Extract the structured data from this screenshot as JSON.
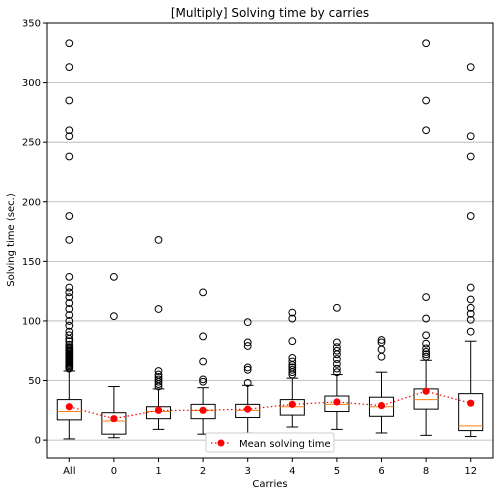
{
  "chart_data": {
    "type": "box",
    "title": "[Multiply] Solving time by carries",
    "xlabel": "Carries",
    "ylabel": "Solving time (sec.)",
    "ylim": [
      -15,
      350
    ],
    "yticks": [
      0,
      50,
      100,
      150,
      200,
      250,
      300,
      350
    ],
    "grid": "horizontal",
    "legend": {
      "position": "bottom-center",
      "entries": [
        "Mean solving time"
      ]
    },
    "colors": {
      "box": "#000000",
      "median": "#ff7f0e",
      "mean": "#ff0000",
      "grid": "#b0b0b0"
    },
    "categories": [
      "All",
      "0",
      "1",
      "2",
      "3",
      "4",
      "5",
      "6",
      "8",
      "12"
    ],
    "boxes": [
      {
        "category": "All",
        "whisker_low": 1,
        "q1": 17,
        "median": 24,
        "q3": 34,
        "whisker_high": 58,
        "outliers": [
          60,
          61,
          62,
          63,
          64,
          65,
          66,
          67,
          68,
          69,
          70,
          71,
          72,
          73,
          74,
          75,
          76,
          77,
          78,
          80,
          83,
          85,
          88,
          91,
          96,
          100,
          105,
          110,
          115,
          120,
          124,
          128,
          137,
          168,
          188,
          238,
          255,
          260,
          285,
          313,
          333
        ]
      },
      {
        "category": "0",
        "whisker_low": 2,
        "q1": 5,
        "median": 16,
        "q3": 23,
        "whisker_high": 45,
        "outliers": [
          104,
          137
        ]
      },
      {
        "category": "1",
        "whisker_low": 9,
        "q1": 18,
        "median": 24,
        "q3": 28,
        "whisker_high": 43,
        "outliers": [
          45,
          47,
          49,
          51,
          53,
          55,
          58,
          110,
          168
        ]
      },
      {
        "category": "2",
        "whisker_low": 5,
        "q1": 18,
        "median": 25,
        "q3": 30,
        "whisker_high": 44,
        "outliers": [
          49,
          51,
          66,
          87,
          124
        ]
      },
      {
        "category": "3",
        "whisker_low": 6,
        "q1": 19,
        "median": 25,
        "q3": 30,
        "whisker_high": 46,
        "outliers": [
          48,
          59,
          61,
          79,
          82,
          99
        ]
      },
      {
        "category": "4",
        "whisker_low": 11,
        "q1": 21,
        "median": 28,
        "q3": 34,
        "whisker_high": 52,
        "outliers": [
          55,
          57,
          59,
          61,
          63,
          66,
          69,
          83,
          102,
          107
        ]
      },
      {
        "category": "5",
        "whisker_low": 9,
        "q1": 24,
        "median": 30,
        "q3": 37,
        "whisker_high": 55,
        "outliers": [
          57,
          60,
          64,
          68,
          72,
          75,
          78,
          82,
          111
        ]
      },
      {
        "category": "6",
        "whisker_low": 6,
        "q1": 20,
        "median": 28,
        "q3": 36,
        "whisker_high": 57,
        "outliers": [
          70,
          76,
          82,
          84
        ]
      },
      {
        "category": "8",
        "whisker_low": 4,
        "q1": 26,
        "median": 34,
        "q3": 43,
        "whisker_high": 67,
        "outliers": [
          70,
          72,
          74,
          77,
          81,
          88,
          102,
          120,
          260,
          285,
          333
        ]
      },
      {
        "category": "12",
        "whisker_low": 3,
        "q1": 8,
        "median": 12,
        "q3": 39,
        "whisker_high": 83,
        "outliers": [
          91,
          101,
          106,
          111,
          118,
          128,
          188,
          238,
          255,
          313
        ]
      }
    ],
    "series": [
      {
        "name": "Mean solving time",
        "values": [
          28,
          18,
          25,
          25,
          26,
          30,
          32,
          29,
          41,
          31
        ]
      }
    ]
  }
}
